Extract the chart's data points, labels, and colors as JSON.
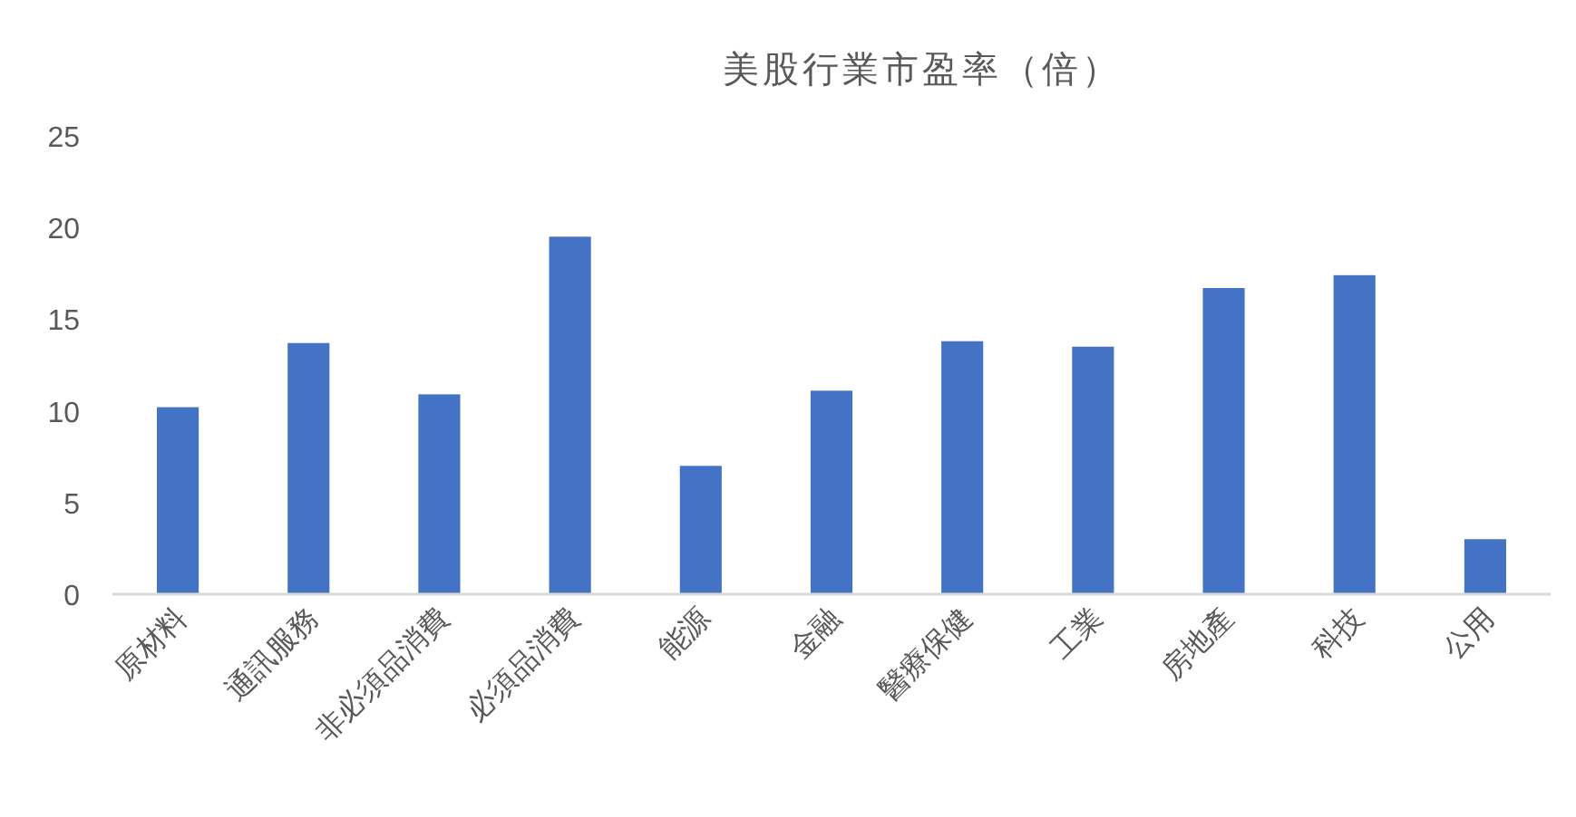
{
  "chart_data": {
    "type": "bar",
    "title": "美股行業市盈率（倍）",
    "categories": [
      "原材料",
      "通訊服務",
      "非必須品消費",
      "必須品消費",
      "能源",
      "金融",
      "醫療保健",
      "工業",
      "房地產",
      "科技",
      "公用"
    ],
    "values": [
      10.2,
      13.7,
      10.9,
      19.5,
      7.0,
      11.1,
      13.8,
      13.5,
      16.7,
      17.4,
      3.0
    ],
    "color": "#4472c4",
    "ylim": [
      0,
      25
    ],
    "yticks": [
      0,
      5,
      10,
      15,
      20,
      25
    ]
  }
}
